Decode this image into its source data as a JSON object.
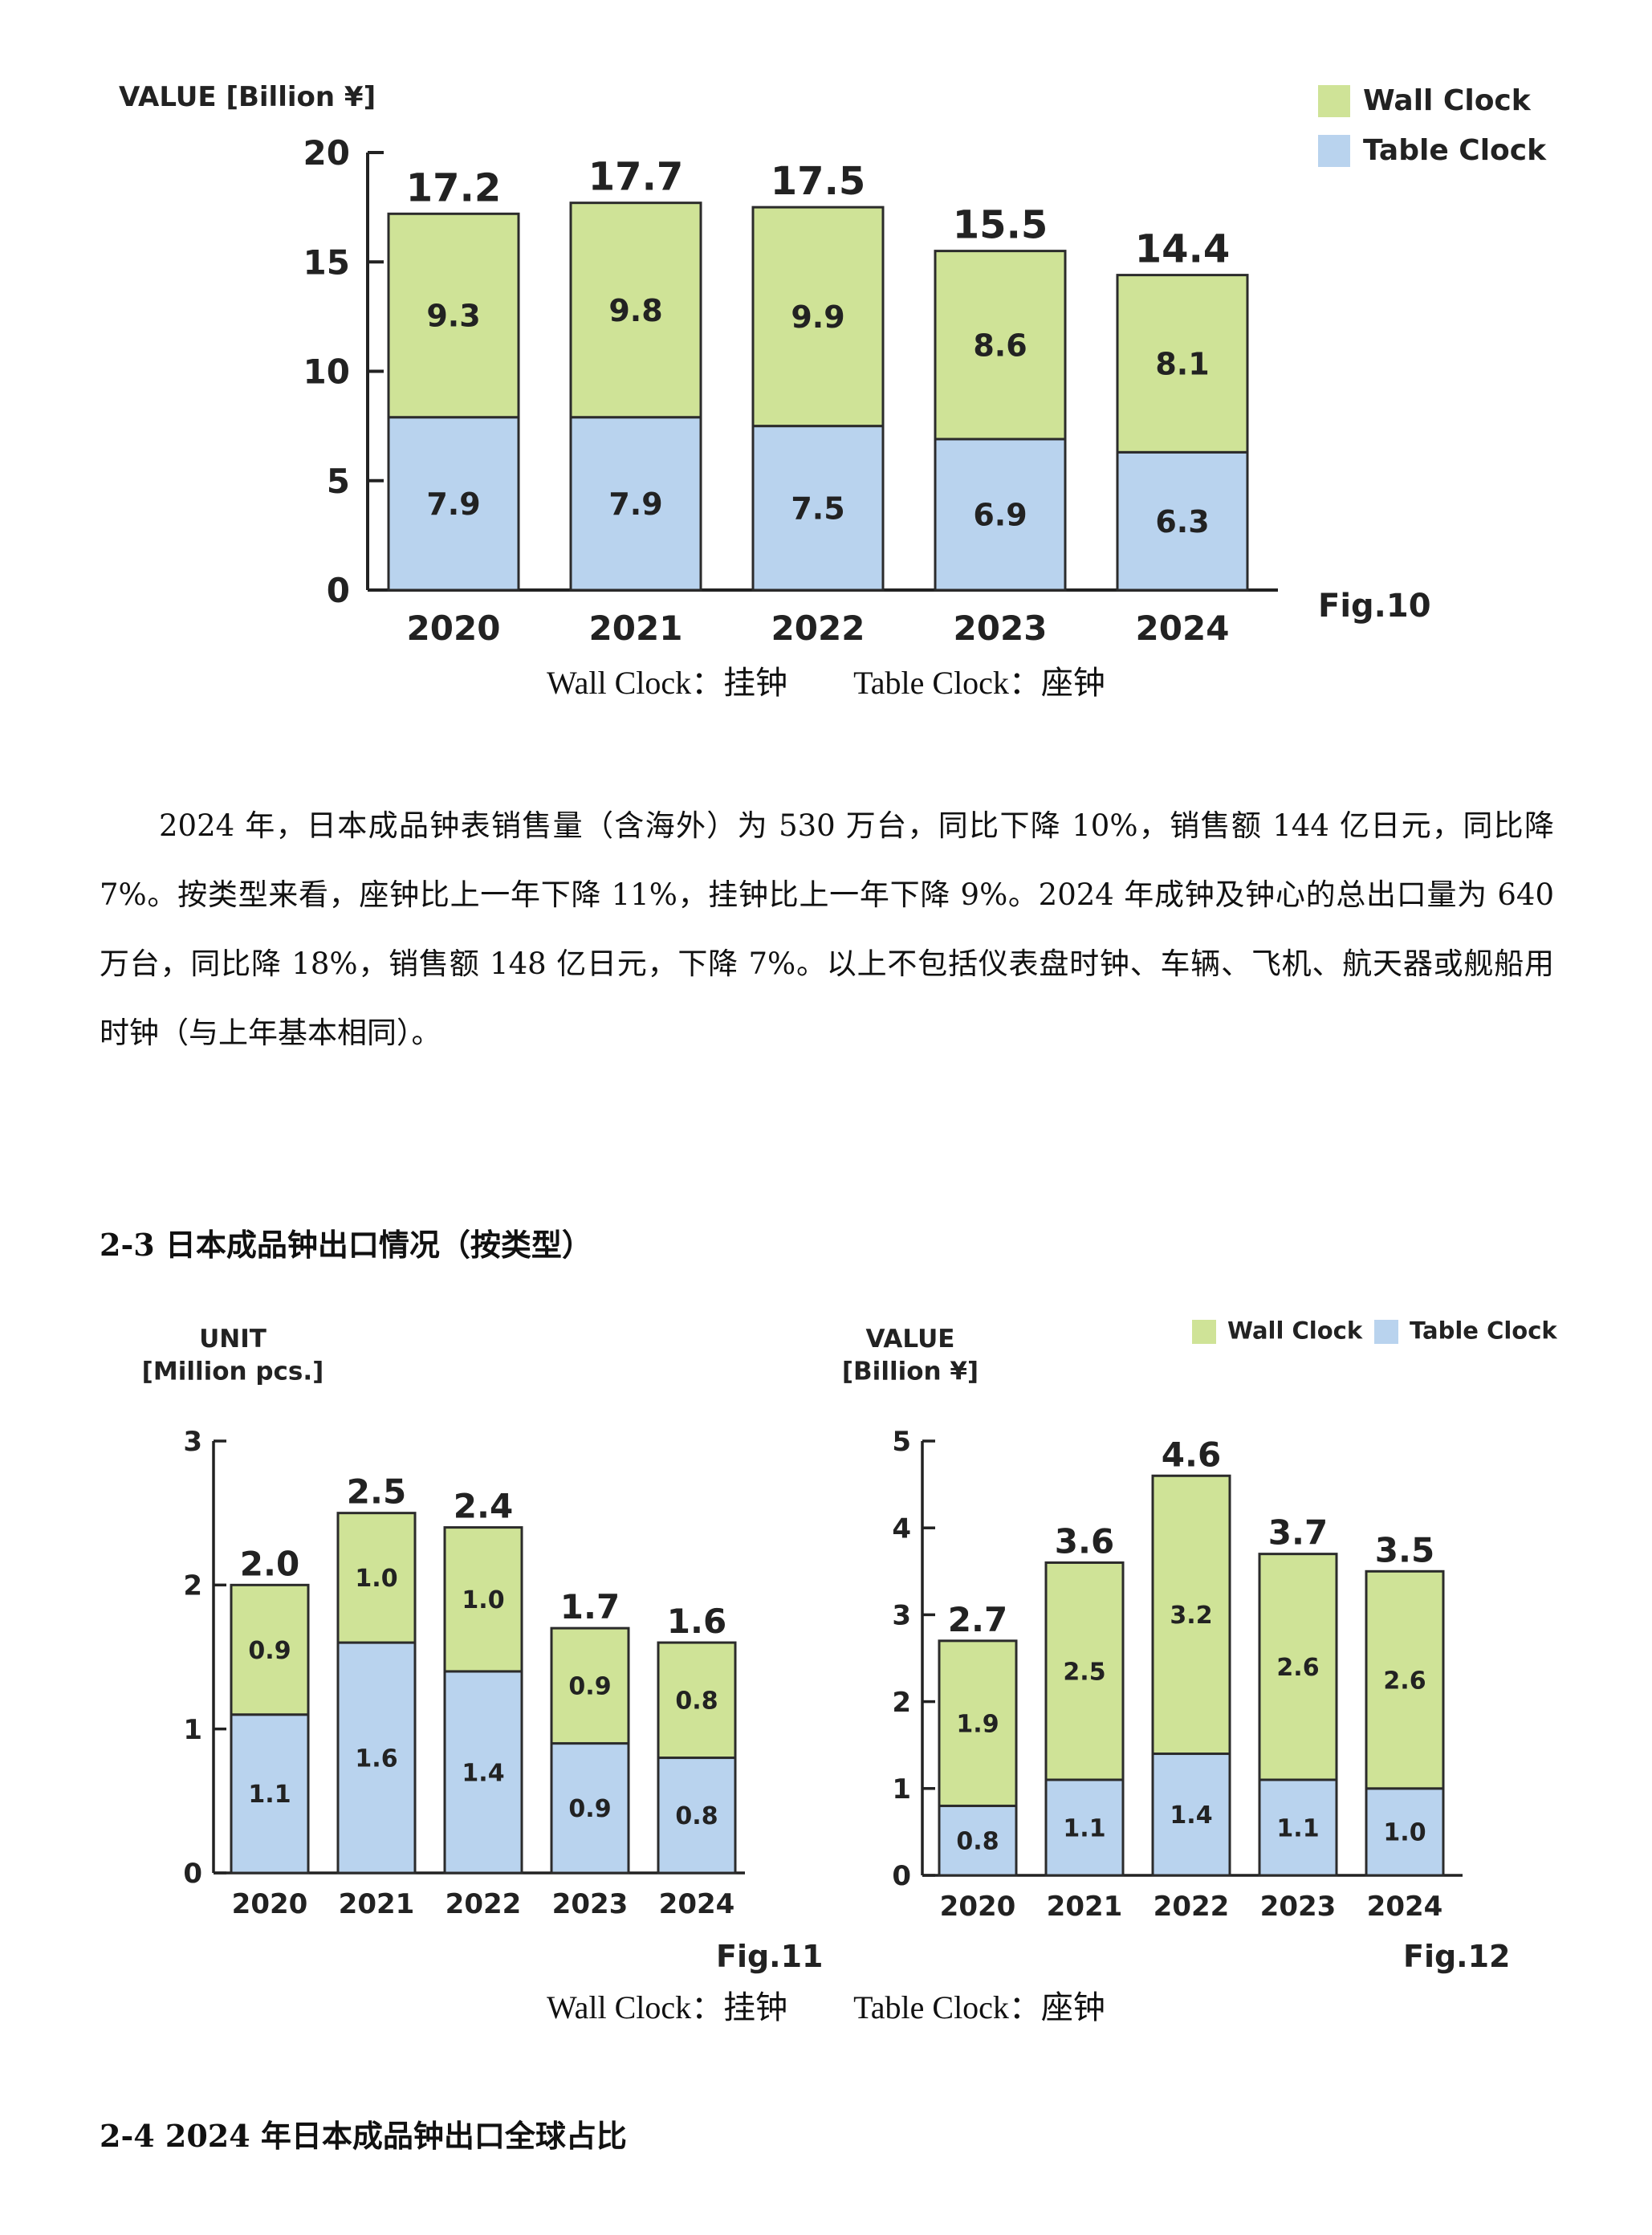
{
  "colors": {
    "wall": "#cfe397",
    "table": "#b9d3ee",
    "stroke": "#2b2b2b"
  },
  "fig10": {
    "chart_data": {
      "type": "bar",
      "stacked": true,
      "ylabel": "VALUE [Billion ¥]",
      "fig_label": "Fig.10",
      "categories": [
        "2020",
        "2021",
        "2022",
        "2023",
        "2024"
      ],
      "series": [
        {
          "name": "Table Clock",
          "values": [
            7.9,
            7.9,
            7.5,
            6.9,
            6.3
          ]
        },
        {
          "name": "Wall Clock",
          "values": [
            9.3,
            9.8,
            9.9,
            8.6,
            8.1
          ]
        }
      ],
      "totals": [
        17.2,
        17.7,
        17.5,
        15.5,
        14.4
      ],
      "ylim": [
        0,
        20
      ],
      "yticks": [
        0,
        5,
        10,
        15,
        20
      ],
      "legend": [
        "Wall Clock",
        "Table Clock"
      ],
      "legend_position": "top-right"
    }
  },
  "fig11": {
    "chart_data": {
      "type": "bar",
      "stacked": true,
      "ylabel": "UNIT",
      "ylabel2": "[Million pcs.]",
      "fig_label": "Fig.11",
      "categories": [
        "2020",
        "2021",
        "2022",
        "2023",
        "2024"
      ],
      "series": [
        {
          "name": "Table Clock",
          "values": [
            1.1,
            1.6,
            1.4,
            0.9,
            0.8
          ]
        },
        {
          "name": "Wall Clock",
          "values": [
            0.9,
            1.0,
            1.0,
            0.9,
            0.8
          ]
        }
      ],
      "totals": [
        2.0,
        2.5,
        2.4,
        1.7,
        1.6
      ],
      "ylim": [
        0,
        3
      ],
      "yticks": [
        0,
        1,
        2,
        3
      ]
    }
  },
  "fig12": {
    "chart_data": {
      "type": "bar",
      "stacked": true,
      "ylabel": "VALUE",
      "ylabel2": "[Billion ¥]",
      "fig_label": "Fig.12",
      "categories": [
        "2020",
        "2021",
        "2022",
        "2023",
        "2024"
      ],
      "series": [
        {
          "name": "Table Clock",
          "values": [
            0.8,
            1.1,
            1.4,
            1.1,
            1.0
          ]
        },
        {
          "name": "Wall Clock",
          "values": [
            1.9,
            2.5,
            3.2,
            2.6,
            2.6
          ]
        }
      ],
      "totals": [
        2.7,
        3.6,
        4.6,
        3.7,
        3.5
      ],
      "ylim": [
        0,
        5
      ],
      "yticks": [
        0,
        1,
        2,
        3,
        4,
        5
      ],
      "legend": [
        "Wall Clock",
        "Table Clock"
      ],
      "legend_position": "top-right"
    }
  },
  "caption1": {
    "wall": "Wall Clock：挂钟",
    "table": "Table Clock：座钟"
  },
  "caption2": {
    "wall": "Wall Clock：挂钟",
    "table": "Table Clock：座钟"
  },
  "paragraph": "2024 年，日本成品钟表销售量（含海外）为 530 万台，同比下降 10%，销售额 144 亿日元，同比降 7%。按类型来看，座钟比上一年下降 11%，挂钟比上一年下降 9%。2024 年成钟及钟心的总出口量为 640 万台，同比降 18%，销售额 148 亿日元，下降 7%。以上不包括仪表盘时钟、车辆、飞机、航天器或舰船用时钟（与上年基本相同）。",
  "heading_2_3": "2-3 日本成品钟出口情况（按类型）",
  "heading_2_4": "2-4 2024 年日本成品钟出口全球占比"
}
